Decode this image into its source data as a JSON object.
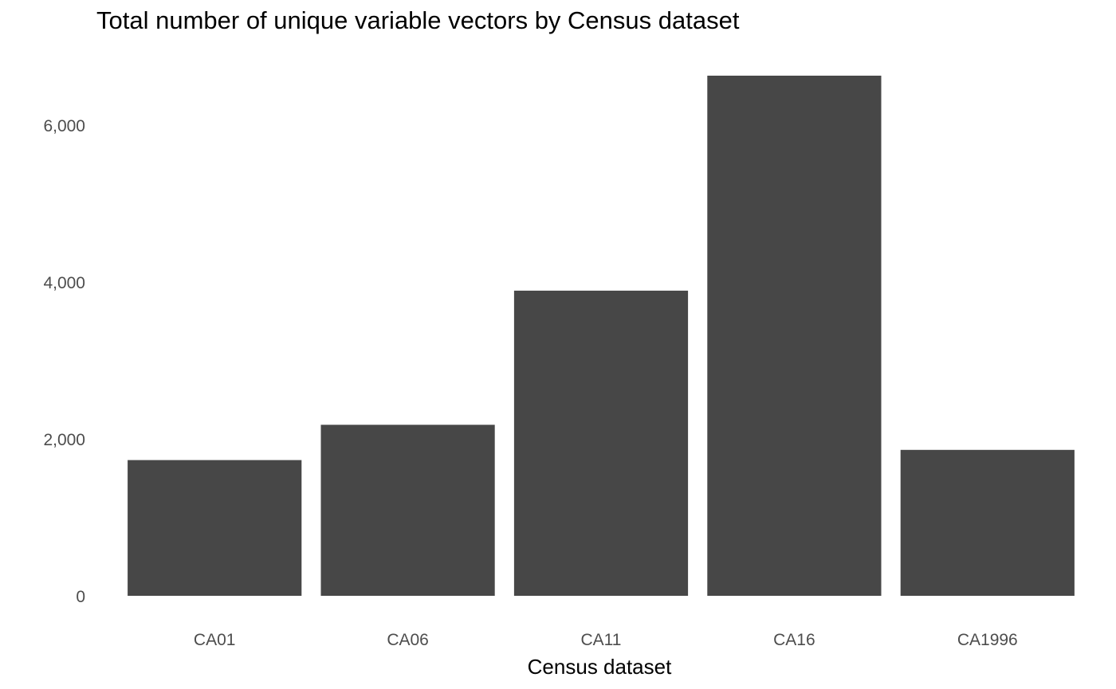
{
  "chart_data": {
    "type": "bar",
    "title": "Total number of unique variable vectors by Census dataset",
    "xlabel": "Census dataset",
    "ylabel": "",
    "categories": [
      "CA01",
      "CA06",
      "CA11",
      "CA16",
      "CA1996"
    ],
    "values": [
      1730,
      2180,
      3890,
      6630,
      1860
    ],
    "ylim": [
      0,
      6630
    ],
    "yticks": [
      0,
      2000,
      4000,
      6000
    ],
    "ytick_labels": [
      "0",
      "2,000",
      "4,000",
      "6,000"
    ],
    "grid": false,
    "legend": "none",
    "bar_color": "#474747",
    "text_color": "#4d4d4d",
    "background": "#ffffff"
  }
}
